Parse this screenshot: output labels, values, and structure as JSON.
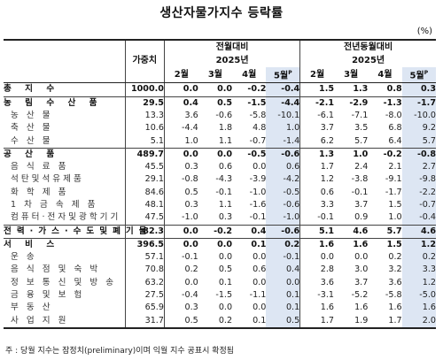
{
  "title": "생산자물가지수 등락률",
  "unit": "(%)",
  "header": {
    "weight": "가중치",
    "group_mom": "전월대비",
    "group_yoy": "전년동월대비",
    "year": "2025년",
    "months": [
      "2월",
      "3월",
      "4월",
      "5월"
    ],
    "prelim_mark": "P"
  },
  "rows": [
    {
      "label": "총 지 수",
      "type": "main",
      "weight": "1000.0",
      "mom": [
        "0.0",
        "0.0",
        "-0.2",
        "-0.4"
      ],
      "yoy": [
        "1.5",
        "1.3",
        "0.8",
        "0.3"
      ]
    },
    {
      "label": "농 림 수 산 품",
      "type": "main",
      "weight": "29.5",
      "mom": [
        "0.4",
        "0.5",
        "-1.5",
        "-4.4"
      ],
      "yoy": [
        "-2.1",
        "-2.9",
        "-1.3",
        "-1.7"
      ]
    },
    {
      "label": "농 산 물",
      "type": "sub",
      "weight": "13.3",
      "mom": [
        "3.6",
        "-0.6",
        "-5.8",
        "-10.1"
      ],
      "yoy": [
        "-6.1",
        "-7.1",
        "-8.0",
        "-10.0"
      ]
    },
    {
      "label": "축 산 물",
      "type": "sub",
      "weight": "10.6",
      "mom": [
        "-4.4",
        "1.8",
        "4.8",
        "1.0"
      ],
      "yoy": [
        "3.7",
        "3.5",
        "6.8",
        "9.2"
      ]
    },
    {
      "label": "수 산 물",
      "type": "sub",
      "weight": "5.1",
      "mom": [
        "1.0",
        "1.1",
        "-0.7",
        "-1.4"
      ],
      "yoy": [
        "6.2",
        "5.7",
        "6.4",
        "5.7"
      ]
    },
    {
      "label": "공 산 품",
      "type": "main",
      "weight": "489.7",
      "mom": [
        "0.0",
        "0.0",
        "-0.5",
        "-0.6"
      ],
      "yoy": [
        "1.3",
        "1.0",
        "-0.2",
        "-0.8"
      ]
    },
    {
      "label": "음 식 료 품",
      "type": "sub",
      "weight": "45.5",
      "mom": [
        "0.3",
        "0.6",
        "0.0",
        "0.6"
      ],
      "yoy": [
        "1.7",
        "2.4",
        "2.1",
        "2.7"
      ]
    },
    {
      "label": "석탄및석유제품",
      "type": "sub",
      "weight": "29.1",
      "mom": [
        "-0.8",
        "-4.3",
        "-3.9",
        "-4.2"
      ],
      "yoy": [
        "1.2",
        "-3.8",
        "-9.1",
        "-9.8"
      ]
    },
    {
      "label": "화 학 제 품",
      "type": "sub",
      "weight": "84.6",
      "mom": [
        "0.5",
        "-0.1",
        "-1.0",
        "-0.5"
      ],
      "yoy": [
        "0.6",
        "-0.1",
        "-1.7",
        "-2.2"
      ]
    },
    {
      "label": "1 차 금 속 제 품",
      "type": "sub",
      "weight": "48.1",
      "mom": [
        "0.3",
        "1.1",
        "-1.6",
        "-0.6"
      ],
      "yoy": [
        "3.3",
        "3.7",
        "1.5",
        "-0.7"
      ]
    },
    {
      "label": "컴퓨터·전자및광학기기",
      "type": "sub",
      "weight": "47.5",
      "mom": [
        "-1.0",
        "0.3",
        "-0.1",
        "-1.0"
      ],
      "yoy": [
        "-0.1",
        "0.9",
        "1.0",
        "-0.4"
      ]
    },
    {
      "label": "전력·가스·수도및폐기물",
      "type": "main",
      "weight": "82.3",
      "mom": [
        "0.0",
        "-0.2",
        "0.4",
        "-0.6"
      ],
      "yoy": [
        "5.1",
        "4.6",
        "5.7",
        "4.6"
      ]
    },
    {
      "label": "서 비 스",
      "type": "main",
      "weight": "396.5",
      "mom": [
        "0.0",
        "0.0",
        "0.1",
        "0.2"
      ],
      "yoy": [
        "1.6",
        "1.6",
        "1.5",
        "1.2"
      ]
    },
    {
      "label": "운 송",
      "type": "sub",
      "weight": "57.1",
      "mom": [
        "-0.1",
        "0.0",
        "0.0",
        "-0.1"
      ],
      "yoy": [
        "0.0",
        "0.0",
        "0.2",
        "0.2"
      ]
    },
    {
      "label": "음 식 점 및 숙 박",
      "type": "sub",
      "weight": "70.8",
      "mom": [
        "0.2",
        "0.5",
        "0.6",
        "0.4"
      ],
      "yoy": [
        "2.8",
        "3.0",
        "3.2",
        "3.3"
      ]
    },
    {
      "label": "정 보 통 신 및 방 송",
      "type": "sub",
      "weight": "63.2",
      "mom": [
        "0.0",
        "0.1",
        "0.0",
        "0.0"
      ],
      "yoy": [
        "3.6",
        "3.7",
        "3.6",
        "1.2"
      ]
    },
    {
      "label": "금 융 및 보 험",
      "type": "sub",
      "weight": "27.5",
      "mom": [
        "-0.4",
        "-1.5",
        "-1.1",
        "0.1"
      ],
      "yoy": [
        "-3.1",
        "-5.2",
        "-5.8",
        "-5.0"
      ]
    },
    {
      "label": "부 동 산",
      "type": "sub",
      "weight": "65.9",
      "mom": [
        "0.3",
        "0.0",
        "0.0",
        "0.1"
      ],
      "yoy": [
        "1.6",
        "1.6",
        "1.6",
        "1.6"
      ]
    },
    {
      "label": "사 업 지 원",
      "type": "sub",
      "weight": "31.7",
      "mom": [
        "0.5",
        "0.2",
        "0.1",
        "0.5"
      ],
      "yoy": [
        "1.7",
        "1.9",
        "1.7",
        "2.0"
      ]
    }
  ],
  "note": "주 : 당월 지수는 잠정치(preliminary)이며 익월 지수 공표시 확정됨"
}
